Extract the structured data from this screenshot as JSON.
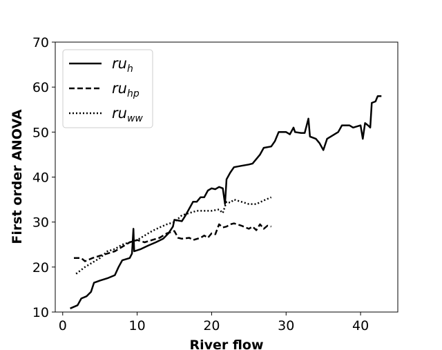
{
  "chart_data": {
    "type": "line",
    "xlabel": "River flow",
    "ylabel": "First order ANOVA",
    "xlim": [
      -1,
      45
    ],
    "ylim": [
      10,
      70
    ],
    "xticks": [
      0,
      10,
      20,
      30,
      40
    ],
    "yticks": [
      10,
      20,
      30,
      40,
      50,
      60,
      70
    ],
    "grid": false,
    "legend_position": "top-left",
    "series": [
      {
        "name": "ru_h",
        "name_base": "ru",
        "name_sub": "h",
        "line_style": "solid",
        "color": "#000000",
        "points": [
          [
            1.0,
            10.8
          ],
          [
            2.0,
            11.5
          ],
          [
            2.5,
            13.0
          ],
          [
            3.2,
            13.5
          ],
          [
            3.8,
            14.5
          ],
          [
            4.2,
            16.5
          ],
          [
            5.0,
            17.0
          ],
          [
            6.0,
            17.5
          ],
          [
            7.0,
            18.2
          ],
          [
            7.5,
            20.0
          ],
          [
            8.0,
            21.5
          ],
          [
            9.0,
            22.0
          ],
          [
            9.3,
            23.0
          ],
          [
            9.5,
            28.5
          ],
          [
            9.6,
            23.5
          ],
          [
            10.5,
            24.0
          ],
          [
            11.5,
            24.8
          ],
          [
            12.5,
            25.5
          ],
          [
            13.5,
            26.3
          ],
          [
            14.2,
            27.5
          ],
          [
            14.8,
            29.0
          ],
          [
            15.0,
            30.5
          ],
          [
            16.0,
            30.2
          ],
          [
            16.5,
            31.5
          ],
          [
            17.0,
            33.0
          ],
          [
            17.5,
            34.5
          ],
          [
            18.0,
            34.5
          ],
          [
            18.5,
            35.5
          ],
          [
            19.0,
            35.5
          ],
          [
            19.5,
            37.0
          ],
          [
            20.0,
            37.5
          ],
          [
            20.5,
            37.3
          ],
          [
            21.0,
            37.8
          ],
          [
            21.5,
            37.5
          ],
          [
            21.8,
            34.0
          ],
          [
            22.0,
            39.5
          ],
          [
            22.5,
            41.0
          ],
          [
            23.0,
            42.2
          ],
          [
            24.0,
            42.5
          ],
          [
            25.0,
            42.8
          ],
          [
            25.5,
            43.0
          ],
          [
            26.0,
            44.0
          ],
          [
            26.5,
            45.0
          ],
          [
            27.0,
            46.5
          ],
          [
            28.0,
            46.8
          ],
          [
            28.5,
            48.0
          ],
          [
            29.0,
            50.0
          ],
          [
            30.0,
            50.0
          ],
          [
            30.5,
            49.5
          ],
          [
            31.0,
            51.0
          ],
          [
            31.2,
            50.0
          ],
          [
            32.0,
            49.8
          ],
          [
            32.5,
            49.8
          ],
          [
            33.0,
            53.0
          ],
          [
            33.2,
            49.0
          ],
          [
            34.0,
            48.5
          ],
          [
            34.5,
            47.5
          ],
          [
            35.0,
            46.0
          ],
          [
            35.5,
            48.5
          ],
          [
            36.0,
            49.0
          ],
          [
            36.5,
            49.5
          ],
          [
            37.0,
            50.0
          ],
          [
            37.5,
            51.5
          ],
          [
            38.5,
            51.5
          ],
          [
            39.0,
            51.0
          ],
          [
            40.0,
            51.5
          ],
          [
            40.3,
            48.5
          ],
          [
            40.6,
            52.0
          ],
          [
            41.0,
            51.5
          ],
          [
            41.3,
            51.0
          ],
          [
            41.5,
            56.5
          ],
          [
            42.0,
            56.8
          ],
          [
            42.3,
            58.0
          ],
          [
            42.8,
            58.0
          ]
        ]
      },
      {
        "name": "ru_hp",
        "name_base": "ru",
        "name_sub": "hp",
        "line_style": "dashed",
        "color": "#000000",
        "points": [
          [
            1.5,
            22.0
          ],
          [
            2.5,
            22.0
          ],
          [
            3.0,
            21.3
          ],
          [
            4.0,
            22.0
          ],
          [
            5.0,
            22.5
          ],
          [
            6.0,
            23.0
          ],
          [
            7.0,
            23.5
          ],
          [
            8.0,
            24.5
          ],
          [
            9.0,
            25.5
          ],
          [
            10.0,
            26.0
          ],
          [
            11.0,
            25.5
          ],
          [
            12.0,
            26.0
          ],
          [
            13.0,
            26.5
          ],
          [
            14.0,
            27.5
          ],
          [
            15.0,
            28.0
          ],
          [
            15.5,
            26.5
          ],
          [
            16.0,
            26.3
          ],
          [
            17.0,
            26.5
          ],
          [
            17.5,
            26.0
          ],
          [
            18.5,
            26.5
          ],
          [
            19.0,
            27.0
          ],
          [
            19.5,
            26.5
          ],
          [
            20.0,
            27.5
          ],
          [
            20.5,
            27.3
          ],
          [
            21.0,
            29.5
          ],
          [
            21.5,
            28.8
          ],
          [
            22.0,
            29.0
          ],
          [
            22.5,
            29.5
          ],
          [
            23.0,
            29.7
          ],
          [
            24.0,
            29.2
          ],
          [
            25.0,
            28.5
          ],
          [
            25.5,
            29.0
          ],
          [
            26.0,
            28.2
          ],
          [
            26.5,
            29.5
          ],
          [
            27.0,
            28.5
          ],
          [
            27.5,
            29.2
          ],
          [
            28.0,
            29.0
          ]
        ]
      },
      {
        "name": "ru_ww",
        "name_base": "ru",
        "name_sub": "ww",
        "line_style": "dotted",
        "color": "#000000",
        "points": [
          [
            1.8,
            18.5
          ],
          [
            3.0,
            20.0
          ],
          [
            4.0,
            21.0
          ],
          [
            5.0,
            22.0
          ],
          [
            6.0,
            23.5
          ],
          [
            7.0,
            24.0
          ],
          [
            8.0,
            25.0
          ],
          [
            9.0,
            25.5
          ],
          [
            10.0,
            26.0
          ],
          [
            11.0,
            27.0
          ],
          [
            12.0,
            28.0
          ],
          [
            13.0,
            28.8
          ],
          [
            14.0,
            29.5
          ],
          [
            15.0,
            30.0
          ],
          [
            16.0,
            31.5
          ],
          [
            17.0,
            32.0
          ],
          [
            18.0,
            32.5
          ],
          [
            19.0,
            32.5
          ],
          [
            20.0,
            32.5
          ],
          [
            21.0,
            32.8
          ],
          [
            21.5,
            32.0
          ],
          [
            22.0,
            34.5
          ],
          [
            22.5,
            34.3
          ],
          [
            23.0,
            35.0
          ],
          [
            24.0,
            34.5
          ],
          [
            25.0,
            34.0
          ],
          [
            26.0,
            34.0
          ],
          [
            27.0,
            34.8
          ],
          [
            28.0,
            35.5
          ]
        ]
      }
    ]
  }
}
